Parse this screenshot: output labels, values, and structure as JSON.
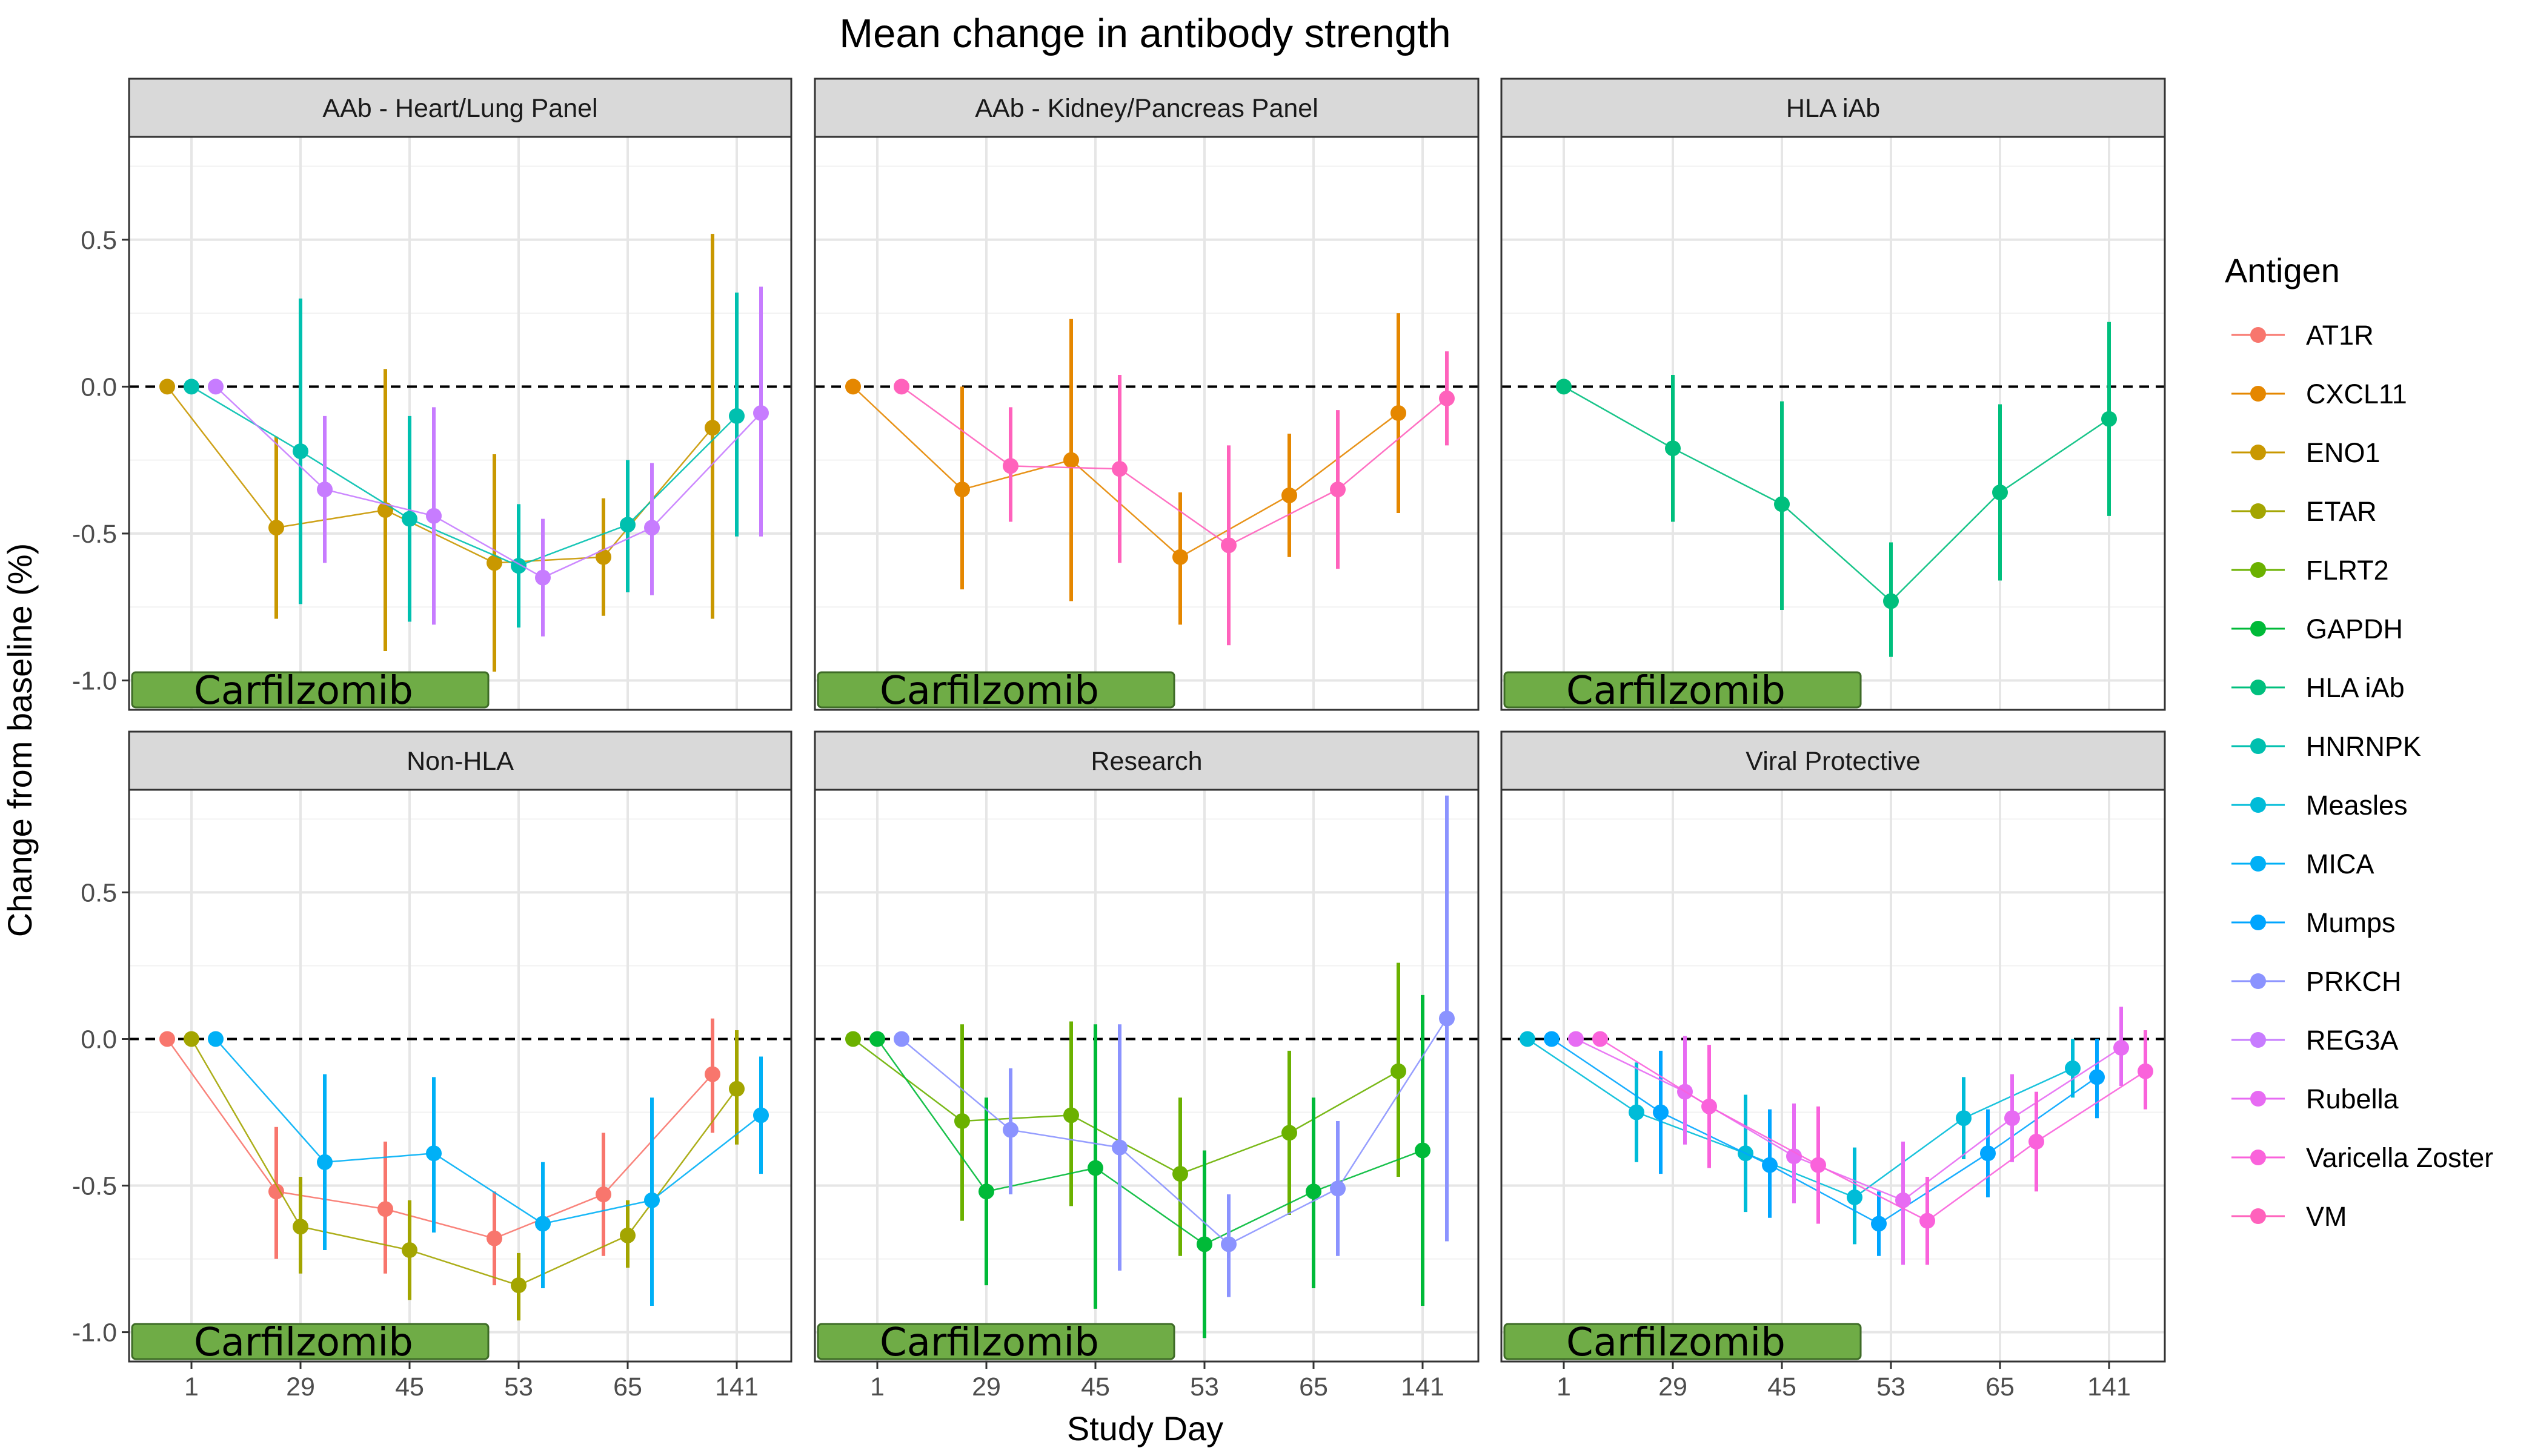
{
  "chart_data": {
    "type": "line",
    "title": "Mean change in antibody strength",
    "xlabel": "Study Day",
    "ylabel": "Change from baseline (%)",
    "x_categories": [
      "1",
      "29",
      "45",
      "53",
      "65",
      "141"
    ],
    "y_ticks": [
      0.5,
      0.0,
      -0.5,
      -1.0
    ],
    "y_tick_labels": [
      "0.5",
      "0.0",
      "-0.5",
      "-1.0"
    ],
    "ylim": [
      -1.1,
      0.85
    ],
    "reference_line": 0,
    "grid": true,
    "legend": {
      "title": "Antigen",
      "position": "right",
      "entries": [
        {
          "name": "AT1R",
          "color": "#F8766D"
        },
        {
          "name": "CXCL11",
          "color": "#E58700"
        },
        {
          "name": "ENO1",
          "color": "#C99800"
        },
        {
          "name": "ETAR",
          "color": "#A3A500"
        },
        {
          "name": "FLRT2",
          "color": "#6BB100"
        },
        {
          "name": "GAPDH",
          "color": "#00BA38"
        },
        {
          "name": "HLA iAb",
          "color": "#00BF7D"
        },
        {
          "name": "HNRNPK",
          "color": "#00C0AF"
        },
        {
          "name": "Measles",
          "color": "#00BCD8"
        },
        {
          "name": "MICA",
          "color": "#00B0F6"
        },
        {
          "name": "Mumps",
          "color": "#00A5FF"
        },
        {
          "name": "PRKCH",
          "color": "#8B93FF"
        },
        {
          "name": "REG3A",
          "color": "#C77CFF"
        },
        {
          "name": "Rubella",
          "color": "#E76BF3"
        },
        {
          "name": "Varicella Zoster",
          "color": "#FA62DB"
        },
        {
          "name": "VM",
          "color": "#FF62BC"
        }
      ]
    },
    "annotation": "Carfilzomib",
    "panels": [
      {
        "name": "AAb - Heart/Lung Panel",
        "series": [
          {
            "name": "ENO1",
            "offset": -1,
            "points": [
              {
                "y": 0.0
              },
              {
                "y": -0.48,
                "lo": -0.79,
                "hi": -0.17
              },
              {
                "y": -0.42,
                "lo": -0.9,
                "hi": 0.06
              },
              {
                "y": -0.6,
                "lo": -0.97,
                "hi": -0.23
              },
              {
                "y": -0.58,
                "lo": -0.78,
                "hi": -0.38
              },
              {
                "y": -0.14,
                "lo": -0.79,
                "hi": 0.52
              }
            ]
          },
          {
            "name": "HNRNPK",
            "offset": 0,
            "points": [
              {
                "y": 0.0
              },
              {
                "y": -0.22,
                "lo": -0.74,
                "hi": 0.3
              },
              {
                "y": -0.45,
                "lo": -0.8,
                "hi": -0.1
              },
              {
                "y": -0.61,
                "lo": -0.82,
                "hi": -0.4
              },
              {
                "y": -0.47,
                "lo": -0.7,
                "hi": -0.25
              },
              {
                "y": -0.1,
                "lo": -0.51,
                "hi": 0.32
              }
            ]
          },
          {
            "name": "REG3A",
            "offset": 1,
            "points": [
              {
                "y": 0.0
              },
              {
                "y": -0.35,
                "lo": -0.6,
                "hi": -0.1
              },
              {
                "y": -0.44,
                "lo": -0.81,
                "hi": -0.07
              },
              {
                "y": -0.65,
                "lo": -0.85,
                "hi": -0.45
              },
              {
                "y": -0.48,
                "lo": -0.71,
                "hi": -0.26
              },
              {
                "y": -0.09,
                "lo": -0.51,
                "hi": 0.34
              }
            ]
          }
        ]
      },
      {
        "name": "AAb - Kidney/Pancreas Panel",
        "series": [
          {
            "name": "CXCL11",
            "offset": -1,
            "points": [
              {
                "y": 0.0
              },
              {
                "y": -0.35,
                "lo": -0.69,
                "hi": 0.0
              },
              {
                "y": -0.25,
                "lo": -0.73,
                "hi": 0.23
              },
              {
                "y": -0.58,
                "lo": -0.81,
                "hi": -0.36
              },
              {
                "y": -0.37,
                "lo": -0.58,
                "hi": -0.16
              },
              {
                "y": -0.09,
                "lo": -0.43,
                "hi": 0.25
              }
            ]
          },
          {
            "name": "VM",
            "offset": 1,
            "points": [
              {
                "y": 0.0
              },
              {
                "y": -0.27,
                "lo": -0.46,
                "hi": -0.07
              },
              {
                "y": -0.28,
                "lo": -0.6,
                "hi": 0.04
              },
              {
                "y": -0.54,
                "lo": -0.88,
                "hi": -0.2
              },
              {
                "y": -0.35,
                "lo": -0.62,
                "hi": -0.08
              },
              {
                "y": -0.04,
                "lo": -0.2,
                "hi": 0.12
              }
            ]
          }
        ]
      },
      {
        "name": "HLA iAb",
        "series": [
          {
            "name": "HLA iAb",
            "offset": 0,
            "points": [
              {
                "y": 0.0
              },
              {
                "y": -0.21,
                "lo": -0.46,
                "hi": 0.04
              },
              {
                "y": -0.4,
                "lo": -0.76,
                "hi": -0.05
              },
              {
                "y": -0.73,
                "lo": -0.92,
                "hi": -0.53
              },
              {
                "y": -0.36,
                "lo": -0.66,
                "hi": -0.06
              },
              {
                "y": -0.11,
                "lo": -0.44,
                "hi": 0.22
              }
            ]
          }
        ]
      },
      {
        "name": "Non-HLA",
        "series": [
          {
            "name": "AT1R",
            "offset": -1,
            "points": [
              {
                "y": 0.0
              },
              {
                "y": -0.52,
                "lo": -0.75,
                "hi": -0.3
              },
              {
                "y": -0.58,
                "lo": -0.8,
                "hi": -0.35
              },
              {
                "y": -0.68,
                "lo": -0.84,
                "hi": -0.52
              },
              {
                "y": -0.53,
                "lo": -0.74,
                "hi": -0.32
              },
              {
                "y": -0.12,
                "lo": -0.32,
                "hi": 0.07
              }
            ]
          },
          {
            "name": "ETAR",
            "offset": 0,
            "points": [
              {
                "y": 0.0
              },
              {
                "y": -0.64,
                "lo": -0.8,
                "hi": -0.47
              },
              {
                "y": -0.72,
                "lo": -0.89,
                "hi": -0.55
              },
              {
                "y": -0.84,
                "lo": -0.96,
                "hi": -0.73
              },
              {
                "y": -0.67,
                "lo": -0.78,
                "hi": -0.55
              },
              {
                "y": -0.17,
                "lo": -0.36,
                "hi": 0.03
              }
            ]
          },
          {
            "name": "MICA",
            "offset": 1,
            "points": [
              {
                "y": 0.0
              },
              {
                "y": -0.42,
                "lo": -0.72,
                "hi": -0.12
              },
              {
                "y": -0.39,
                "lo": -0.66,
                "hi": -0.13
              },
              {
                "y": -0.63,
                "lo": -0.85,
                "hi": -0.42
              },
              {
                "y": -0.55,
                "lo": -0.91,
                "hi": -0.2
              },
              {
                "y": -0.26,
                "lo": -0.46,
                "hi": -0.06
              }
            ]
          }
        ]
      },
      {
        "name": "Research",
        "series": [
          {
            "name": "FLRT2",
            "offset": -1,
            "points": [
              {
                "y": 0.0
              },
              {
                "y": -0.28,
                "lo": -0.62,
                "hi": 0.05
              },
              {
                "y": -0.26,
                "lo": -0.57,
                "hi": 0.06
              },
              {
                "y": -0.46,
                "lo": -0.74,
                "hi": -0.2
              },
              {
                "y": -0.32,
                "lo": -0.6,
                "hi": -0.04
              },
              {
                "y": -0.11,
                "lo": -0.47,
                "hi": 0.26
              }
            ]
          },
          {
            "name": "GAPDH",
            "offset": 0,
            "points": [
              {
                "y": 0.0
              },
              {
                "y": -0.52,
                "lo": -0.84,
                "hi": -0.2
              },
              {
                "y": -0.44,
                "lo": -0.92,
                "hi": 0.05
              },
              {
                "y": -0.7,
                "lo": -1.02,
                "hi": -0.38
              },
              {
                "y": -0.52,
                "lo": -0.85,
                "hi": -0.2
              },
              {
                "y": -0.38,
                "lo": -0.91,
                "hi": 0.15
              }
            ]
          },
          {
            "name": "PRKCH",
            "offset": 1,
            "points": [
              {
                "y": 0.0
              },
              {
                "y": -0.31,
                "lo": -0.53,
                "hi": -0.1
              },
              {
                "y": -0.37,
                "lo": -0.79,
                "hi": 0.05
              },
              {
                "y": -0.7,
                "lo": -0.88,
                "hi": -0.53
              },
              {
                "y": -0.51,
                "lo": -0.74,
                "hi": -0.28
              },
              {
                "y": 0.07,
                "lo": -0.69,
                "hi": 0.83
              }
            ]
          }
        ]
      },
      {
        "name": "Viral Protective",
        "series": [
          {
            "name": "Measles",
            "offset": -1.5,
            "points": [
              {
                "y": 0.0
              },
              {
                "y": -0.25,
                "lo": -0.42,
                "hi": -0.08
              },
              {
                "y": -0.39,
                "lo": -0.59,
                "hi": -0.19
              },
              {
                "y": -0.54,
                "lo": -0.7,
                "hi": -0.37
              },
              {
                "y": -0.27,
                "lo": -0.41,
                "hi": -0.13
              },
              {
                "y": -0.1,
                "lo": -0.2,
                "hi": 0.0
              }
            ]
          },
          {
            "name": "Mumps",
            "offset": -0.5,
            "points": [
              {
                "y": 0.0
              },
              {
                "y": -0.25,
                "lo": -0.46,
                "hi": -0.04
              },
              {
                "y": -0.43,
                "lo": -0.61,
                "hi": -0.24
              },
              {
                "y": -0.63,
                "lo": -0.74,
                "hi": -0.52
              },
              {
                "y": -0.39,
                "lo": -0.54,
                "hi": -0.24
              },
              {
                "y": -0.13,
                "lo": -0.27,
                "hi": 0.0
              }
            ]
          },
          {
            "name": "Rubella",
            "offset": 0.5,
            "points": [
              {
                "y": 0.0
              },
              {
                "y": -0.18,
                "lo": -0.36,
                "hi": 0.01
              },
              {
                "y": -0.4,
                "lo": -0.56,
                "hi": -0.22
              },
              {
                "y": -0.55,
                "lo": -0.77,
                "hi": -0.35
              },
              {
                "y": -0.27,
                "lo": -0.42,
                "hi": -0.12
              },
              {
                "y": -0.03,
                "lo": -0.16,
                "hi": 0.11
              }
            ]
          },
          {
            "name": "Varicella Zoster",
            "offset": 1.5,
            "points": [
              {
                "y": 0.0
              },
              {
                "y": -0.23,
                "lo": -0.44,
                "hi": -0.02
              },
              {
                "y": -0.43,
                "lo": -0.63,
                "hi": -0.23
              },
              {
                "y": -0.62,
                "lo": -0.77,
                "hi": -0.47
              },
              {
                "y": -0.35,
                "lo": -0.52,
                "hi": -0.18
              },
              {
                "y": -0.11,
                "lo": -0.24,
                "hi": 0.03
              }
            ]
          }
        ]
      }
    ]
  }
}
